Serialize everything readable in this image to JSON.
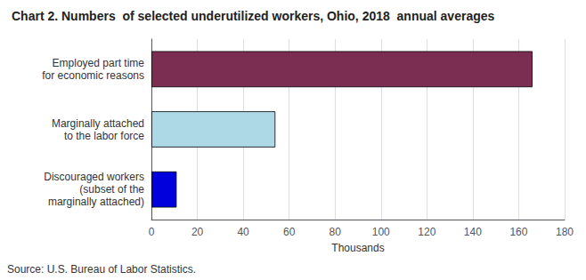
{
  "chart_data": {
    "type": "bar",
    "orientation": "horizontal",
    "title": "Chart 2. Numbers  of selected underutilized workers, Ohio, 2018  annual averages",
    "categories": [
      "Discouraged workers\n(subset of the\nmarginally attached)",
      "Marginally attached\nto the labor force",
      "Employed part time\nfor economic reasons"
    ],
    "values": [
      11,
      54,
      166
    ],
    "colors": [
      "#0000dd",
      "#add8e6",
      "#7b2d52"
    ],
    "xlabel": "Thousands",
    "xlim": [
      0,
      180
    ],
    "xticks": [
      0,
      20,
      40,
      60,
      80,
      100,
      120,
      140,
      160,
      180
    ],
    "grid": true,
    "annotations": [
      "Source: U.S. Bureau of Labor Statistics."
    ]
  }
}
